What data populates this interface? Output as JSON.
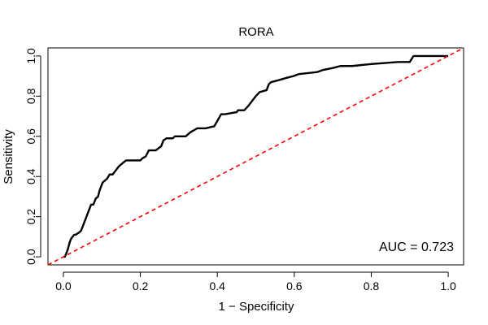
{
  "chart_data": {
    "type": "line",
    "title": "RORA",
    "xlabel": "1 − Specificity",
    "ylabel": "Sensitivity",
    "xlim": [
      -0.04,
      1.04
    ],
    "ylim": [
      -0.04,
      1.04
    ],
    "xticks": [
      {
        "value": 0.0,
        "label": "0.0"
      },
      {
        "value": 0.2,
        "label": "0.2"
      },
      {
        "value": 0.4,
        "label": "0.4"
      },
      {
        "value": 0.6,
        "label": "0.6"
      },
      {
        "value": 0.8,
        "label": "0.8"
      },
      {
        "value": 1.0,
        "label": "1.0"
      }
    ],
    "yticks": [
      {
        "value": 0.0,
        "label": "0.0"
      },
      {
        "value": 0.2,
        "label": "0.2"
      },
      {
        "value": 0.4,
        "label": "0.4"
      },
      {
        "value": 0.6,
        "label": "0.6"
      },
      {
        "value": 0.8,
        "label": "0.8"
      },
      {
        "value": 1.0,
        "label": "1.0"
      }
    ],
    "grid": false,
    "series": [
      {
        "kind": "roc-curve",
        "color": "#000000",
        "x": [
          0.0,
          0.004,
          0.008,
          0.012,
          0.016,
          0.02,
          0.024,
          0.028,
          0.032,
          0.04,
          0.046,
          0.05,
          0.054,
          0.058,
          0.062,
          0.066,
          0.072,
          0.078,
          0.084,
          0.09,
          0.094,
          0.098,
          0.102,
          0.108,
          0.114,
          0.12,
          0.128,
          0.136,
          0.144,
          0.15,
          0.156,
          0.163,
          0.172,
          0.2,
          0.205,
          0.214,
          0.222,
          0.24,
          0.254,
          0.26,
          0.268,
          0.284,
          0.29,
          0.304,
          0.318,
          0.33,
          0.348,
          0.37,
          0.392,
          0.398,
          0.404,
          0.41,
          0.42,
          0.45,
          0.454,
          0.47,
          0.48,
          0.488,
          0.5,
          0.51,
          0.528,
          0.534,
          0.54,
          0.56,
          0.578,
          0.598,
          0.612,
          0.66,
          0.674,
          0.7,
          0.72,
          0.75,
          0.8,
          0.87,
          0.9,
          0.91,
          1.0
        ],
        "y": [
          0.0,
          0.0,
          0.02,
          0.04,
          0.07,
          0.09,
          0.1,
          0.11,
          0.11,
          0.12,
          0.13,
          0.15,
          0.17,
          0.19,
          0.21,
          0.23,
          0.26,
          0.26,
          0.29,
          0.3,
          0.33,
          0.35,
          0.37,
          0.38,
          0.39,
          0.41,
          0.41,
          0.43,
          0.45,
          0.46,
          0.47,
          0.48,
          0.48,
          0.48,
          0.49,
          0.5,
          0.53,
          0.53,
          0.55,
          0.58,
          0.59,
          0.59,
          0.6,
          0.6,
          0.6,
          0.62,
          0.64,
          0.64,
          0.65,
          0.67,
          0.69,
          0.71,
          0.71,
          0.72,
          0.73,
          0.73,
          0.75,
          0.77,
          0.8,
          0.82,
          0.83,
          0.86,
          0.87,
          0.88,
          0.89,
          0.9,
          0.91,
          0.92,
          0.93,
          0.94,
          0.95,
          0.95,
          0.96,
          0.97,
          0.97,
          1.0,
          1.0
        ]
      },
      {
        "kind": "reference-diagonal",
        "color": "#ff0000",
        "dashed": true,
        "x": [
          -0.04,
          1.04
        ],
        "y": [
          -0.04,
          1.04
        ]
      }
    ],
    "annotation": "AUC = 0.723"
  }
}
